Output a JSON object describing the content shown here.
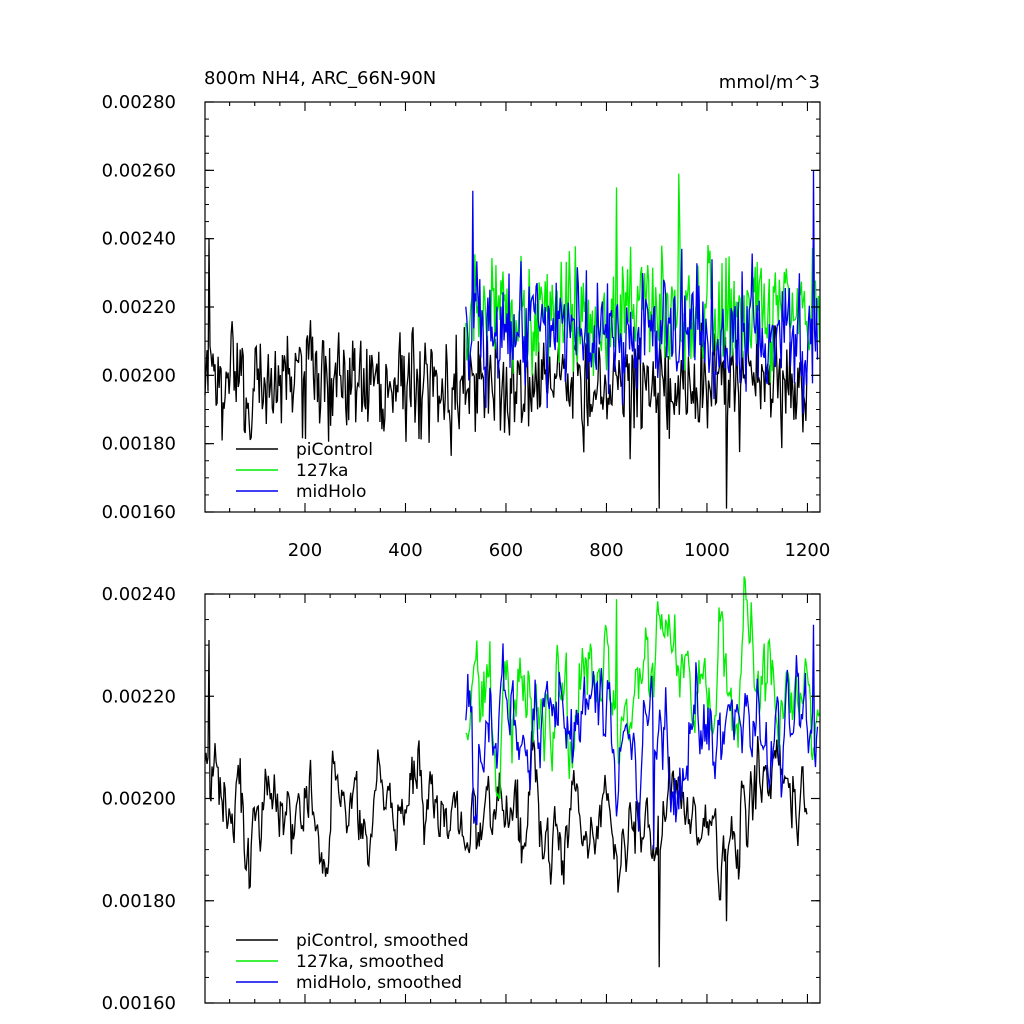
{
  "chart_data": [
    {
      "type": "line",
      "title": "800m NH4, ARC_66N-90N",
      "units": "mmol/m^3",
      "xlim": [
        1,
        1225
      ],
      "ylim": [
        0.0016,
        0.0028
      ],
      "x_ticks": [
        200,
        400,
        600,
        800,
        1000,
        1200
      ],
      "y_ticks": [
        0.0016,
        0.0018,
        0.002,
        0.0022,
        0.0024,
        0.0026,
        0.0028
      ],
      "y_tick_labels": [
        "0.00160",
        "0.00180",
        "0.00200",
        "0.00220",
        "0.00240",
        "0.00260",
        "0.00280"
      ],
      "legend": {
        "position": "bottom-left",
        "entries": [
          "piControl",
          "127ka",
          "midHolo"
        ]
      },
      "series": [
        {
          "name": "piControl",
          "color": "#000000",
          "x_range": [
            1,
            1200
          ],
          "mean": 0.00198,
          "spread": 0.00012,
          "notable": [
            {
              "x": 905,
              "y": 0.00161
            },
            {
              "x": 1040,
              "y": 0.00161
            },
            {
              "x": 10,
              "y": 0.0024
            }
          ]
        },
        {
          "name": "127ka",
          "color": "#00ee00",
          "x_range": [
            520,
            1225
          ],
          "mean": 0.00218,
          "spread": 0.00013,
          "notable": [
            {
              "x": 945,
              "y": 0.00259
            },
            {
              "x": 820,
              "y": 0.00255
            }
          ]
        },
        {
          "name": "midHolo",
          "color": "#0000ee",
          "x_range": [
            520,
            1220
          ],
          "mean": 0.00213,
          "spread": 0.00013,
          "notable": [
            {
              "x": 1212,
              "y": 0.0026
            },
            {
              "x": 535,
              "y": 0.00254
            }
          ]
        }
      ]
    },
    {
      "type": "line",
      "xlim": [
        1,
        1225
      ],
      "ylim": [
        0.0016,
        0.0024
      ],
      "y_ticks": [
        0.0016,
        0.0018,
        0.002,
        0.0022,
        0.0024
      ],
      "y_tick_labels": [
        "0.00160",
        "0.00180",
        "0.00200",
        "0.00220",
        "0.00240"
      ],
      "legend": {
        "position": "bottom-left",
        "entries": [
          "piControl, smoothed",
          "127ka, smoothed",
          "midHolo, smoothed"
        ]
      },
      "series": [
        {
          "name": "piControl, smoothed",
          "color": "#000000",
          "x_range": [
            1,
            1200
          ],
          "mean": 0.00198,
          "spread": 7e-05,
          "notable": [
            {
              "x": 10,
              "y": 0.00231
            },
            {
              "x": 905,
              "y": 0.00167
            },
            {
              "x": 1040,
              "y": 0.00176
            }
          ]
        },
        {
          "name": "127ka, smoothed",
          "color": "#00ee00",
          "x_range": [
            520,
            1225
          ],
          "mean": 0.00221,
          "spread": 8e-05,
          "notable": [
            {
              "x": 820,
              "y": 0.00239
            }
          ]
        },
        {
          "name": "midHolo, smoothed",
          "color": "#0000ee",
          "x_range": [
            520,
            1220
          ],
          "mean": 0.00215,
          "spread": 9e-05,
          "notable": [
            {
              "x": 1212,
              "y": 0.00234
            },
            {
              "x": 895,
              "y": 0.0019
            }
          ]
        }
      ]
    }
  ]
}
